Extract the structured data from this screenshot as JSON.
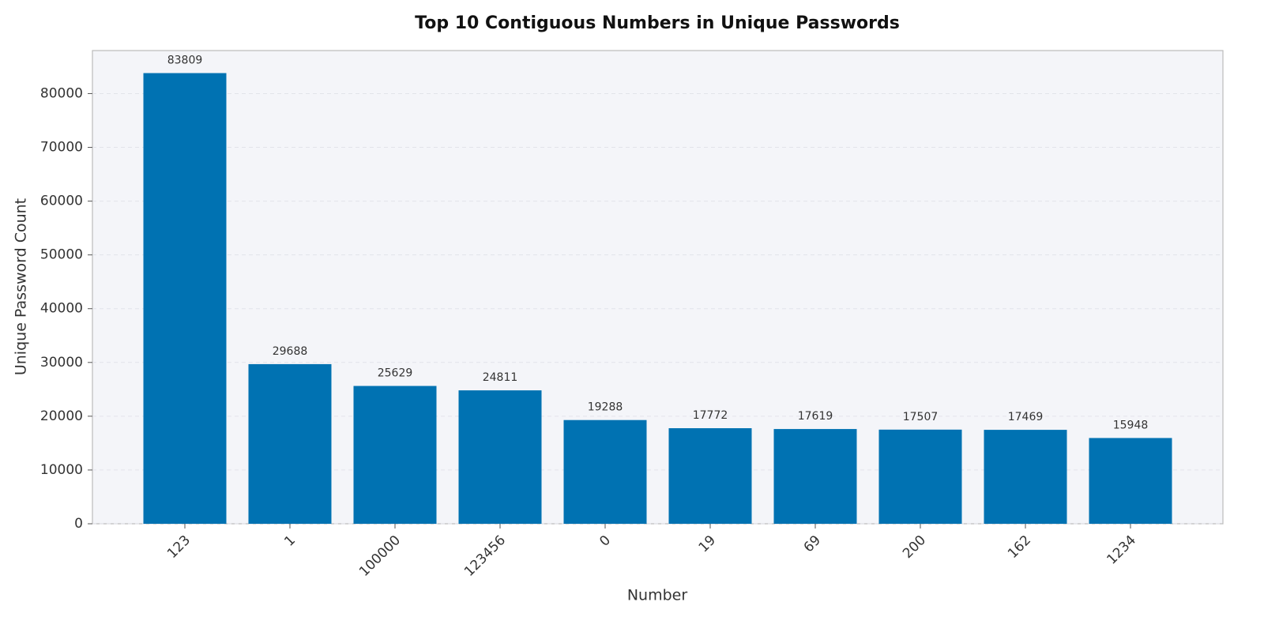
{
  "chart_data": {
    "type": "bar",
    "title": "Top 10 Contiguous Numbers in Unique Passwords",
    "x_label": "Number",
    "y_label": "Unique Password Count",
    "categories": [
      "123",
      "1",
      "100000",
      "123456",
      "0",
      "19",
      "69",
      "200",
      "162",
      "1234"
    ],
    "values": [
      83809,
      29688,
      25629,
      24811,
      19288,
      17772,
      17619,
      17507,
      17469,
      15948
    ],
    "color": "#0072b2",
    "ylim": [
      0,
      88000
    ],
    "yticks": [
      0,
      10000,
      20000,
      30000,
      40000,
      50000,
      60000,
      70000,
      80000
    ],
    "grid": true
  }
}
